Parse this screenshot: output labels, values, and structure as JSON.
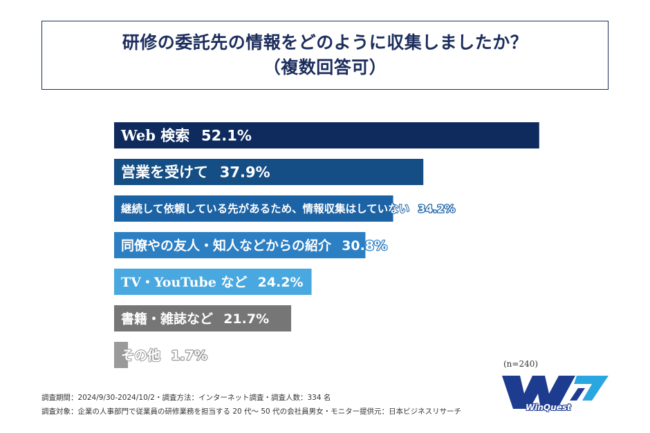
{
  "header": {
    "title_line1": "研修の委託先の情報をどのように収集しましたか？",
    "title_line2": "（複数回答可）"
  },
  "chart_data": {
    "type": "bar",
    "orientation": "horizontal",
    "title": "研修の委託先の情報をどのように収集しましたか？（複数回答可）",
    "categories": [
      "Web 検索",
      "営業を受けて",
      "継続して依頼している先があるため、情報収集はしていない",
      "同僚やの友人・知人などからの紹介",
      "TV・YouTube など",
      "書籍・雑誌など",
      "その他"
    ],
    "values": [
      52.1,
      37.9,
      34.2,
      30.8,
      24.2,
      21.7,
      1.7
    ],
    "value_labels": [
      "52.1%",
      "37.9%",
      "34.2%",
      "30.8%",
      "24.2%",
      "21.7%",
      "1.7%"
    ],
    "colors": [
      "#0f2b5e",
      "#154e84",
      "#1c63a6",
      "#2d7fc4",
      "#48a8df",
      "#767676",
      "#9a9a9a"
    ],
    "xlim": [
      0,
      60
    ],
    "unit": "%"
  },
  "sample_size": "(n=240)",
  "footnotes": {
    "line1": "調査期間：2024/9/30-2024/10/2・調査方法：インターネット調査・調査人数：334 名",
    "line2": "調査対象：企業の人事部門で従業員の研修業務を担当する 20 代〜 50 代の会社員男女・モニター提供元：日本ビジネスリサーチ"
  },
  "logo": {
    "text": "WinQuest",
    "primary_color": "#1d3b8f",
    "accent_color": "#2aa6e0"
  }
}
